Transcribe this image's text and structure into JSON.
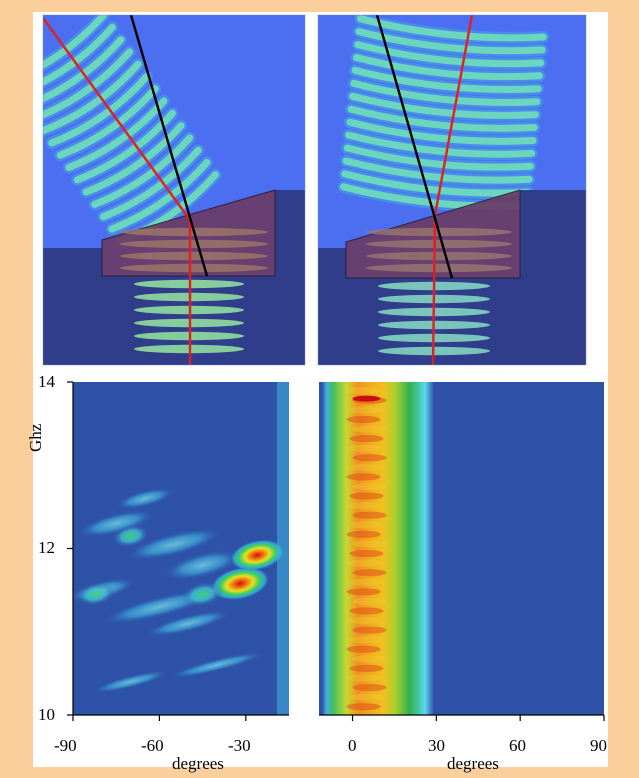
{
  "colors": {
    "frame": "#fbcf9c",
    "panel": "#ffffff",
    "field_background": "#4b6ff0",
    "substrate": "#2f3d8a",
    "prism": "#6a3b66",
    "ray_red": "#e02020",
    "ray_black": "#000000",
    "heatmap_background": "#2e52a8"
  },
  "left_plot": {
    "y_axis_label": "Ghz",
    "x_axis_label": "degrees",
    "y_ticks": [
      "14",
      "12",
      "10"
    ],
    "x_ticks": [
      "-90",
      "-60",
      "-30"
    ]
  },
  "right_plot": {
    "x_axis_label": "degrees",
    "x_ticks": [
      "0",
      "30",
      "60",
      "90"
    ]
  },
  "chart_data": [
    {
      "type": "heatmap",
      "xlabel": "degrees",
      "ylabel": "Ghz",
      "xlim": [
        -90,
        -15
      ],
      "ylim": [
        10,
        14
      ],
      "x_ticks": [
        -90,
        -60,
        -30
      ],
      "y_ticks": [
        10,
        12,
        14
      ],
      "colormap": "jet",
      "hotspots": [
        {
          "x": -32,
          "y": 11.58,
          "intensity": 1.0
        },
        {
          "x": -26,
          "y": 11.92,
          "intensity": 0.9
        },
        {
          "x": -45,
          "y": 11.45,
          "intensity": 0.6
        },
        {
          "x": -70,
          "y": 12.15,
          "intensity": 0.5
        },
        {
          "x": -82,
          "y": 11.45,
          "intensity": 0.5
        }
      ]
    },
    {
      "type": "heatmap",
      "xlabel": "degrees",
      "xlim": [
        -12,
        90
      ],
      "ylim": [
        10,
        14
      ],
      "x_ticks": [
        0,
        30,
        60,
        90
      ],
      "colormap": "jet",
      "band": {
        "center": 5,
        "width": 12,
        "peak": 13.8
      }
    }
  ]
}
